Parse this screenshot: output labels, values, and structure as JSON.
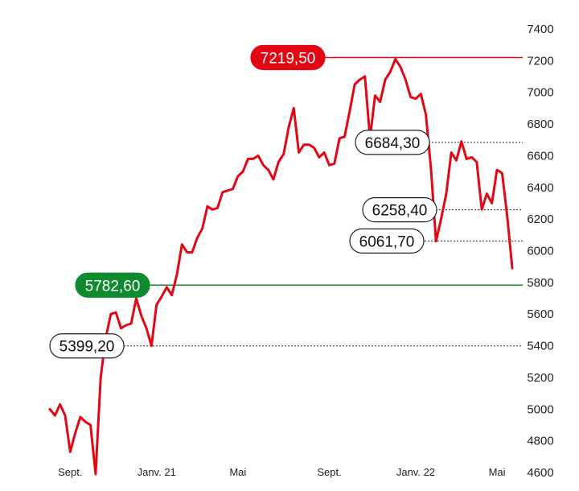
{
  "chart_data": {
    "type": "line",
    "title": "",
    "xlabel": "",
    "ylabel": "",
    "ylim": [
      4600,
      7400
    ],
    "y_ticks": [
      4600,
      4800,
      5000,
      5200,
      5400,
      5600,
      5800,
      6000,
      6200,
      6400,
      6600,
      6800,
      7000,
      7200,
      7400
    ],
    "y_tick_labels": [
      "4600",
      "4800",
      "5000",
      "5200",
      "5400",
      "5600",
      "5800",
      "6000",
      "6200",
      "6400",
      "6600",
      "6800",
      "7000",
      "7200",
      "7400"
    ],
    "x_tick_labels": [
      "Sept.",
      "Janv. 21",
      "Mai",
      "Sept.",
      "Janv. 22",
      "Mai"
    ],
    "grid": false,
    "series": [
      {
        "color": "#e30613",
        "values": [
          5000,
          4960,
          5030,
          4960,
          4730,
          4850,
          4950,
          4920,
          4900,
          4590,
          5200,
          5450,
          5600,
          5610,
          5510,
          5530,
          5540,
          5700,
          5590,
          5510,
          5400,
          5660,
          5710,
          5770,
          5720,
          5850,
          6040,
          5990,
          5990,
          6080,
          6140,
          6280,
          6260,
          6270,
          6370,
          6380,
          6390,
          6470,
          6500,
          6580,
          6580,
          6600,
          6540,
          6510,
          6450,
          6560,
          6610,
          6780,
          6900,
          6620,
          6670,
          6670,
          6650,
          6590,
          6620,
          6540,
          6550,
          6710,
          6720,
          6880,
          7050,
          7080,
          7100,
          6710,
          6980,
          6940,
          7080,
          7130,
          7210,
          7160,
          7080,
          6970,
          6960,
          6990,
          6860,
          6520,
          6060,
          6200,
          6360,
          6620,
          6570,
          6690,
          6580,
          6590,
          6560,
          6260,
          6360,
          6300,
          6510,
          6490,
          6220,
          5890
        ]
      }
    ],
    "reference_lines": [
      {
        "label": "7219,50",
        "value": 7219.5,
        "kind": "high"
      },
      {
        "label": "6684,30",
        "value": 6684.3,
        "kind": "level"
      },
      {
        "label": "6258,40",
        "value": 6258.4,
        "kind": "level"
      },
      {
        "label": "6061,70",
        "value": 6061.7,
        "kind": "level"
      },
      {
        "label": "5782,60",
        "value": 5782.6,
        "kind": "start"
      },
      {
        "label": "5399,20",
        "value": 5399.2,
        "kind": "level"
      }
    ],
    "colors": {
      "line": "#e30613",
      "high": "#e30613",
      "start": "#0e8a2f",
      "level": "#222222"
    }
  }
}
